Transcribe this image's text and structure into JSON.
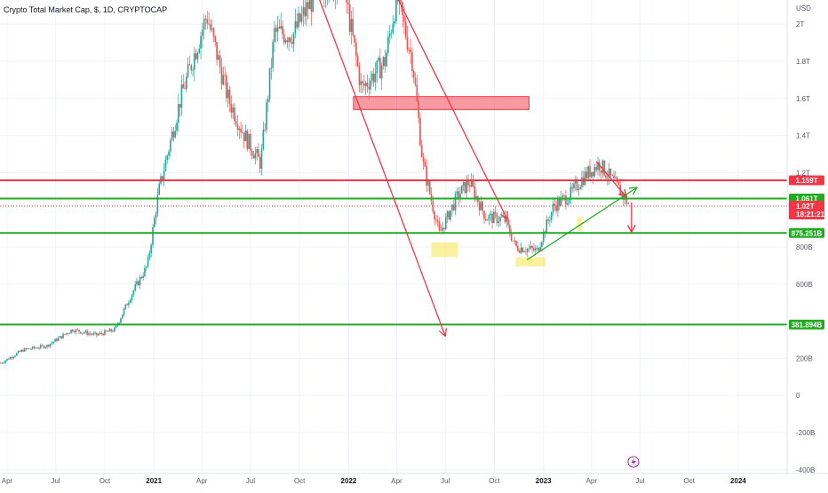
{
  "chart_data": {
    "type": "candlestick",
    "title": "Crypto Total Market Cap, $, 1D, CRYPTOCAP",
    "y_unit_label": "USD",
    "x_tick_labels": [
      {
        "date": "2020-04-01",
        "label": "Apr",
        "bold": false
      },
      {
        "date": "2020-07-01",
        "label": "Jul",
        "bold": false
      },
      {
        "date": "2020-10-01",
        "label": "Oct",
        "bold": false
      },
      {
        "date": "2021-01-01",
        "label": "2021",
        "bold": true
      },
      {
        "date": "2021-04-01",
        "label": "Apr",
        "bold": false
      },
      {
        "date": "2021-07-01",
        "label": "Jul",
        "bold": false
      },
      {
        "date": "2021-10-01",
        "label": "Oct",
        "bold": false
      },
      {
        "date": "2022-01-01",
        "label": "2022",
        "bold": true
      },
      {
        "date": "2022-04-01",
        "label": "Apr",
        "bold": false
      },
      {
        "date": "2022-07-01",
        "label": "Jul",
        "bold": false
      },
      {
        "date": "2022-10-01",
        "label": "Oct",
        "bold": false
      },
      {
        "date": "2023-01-01",
        "label": "2023",
        "bold": true
      },
      {
        "date": "2023-04-01",
        "label": "Apr",
        "bold": false
      },
      {
        "date": "2023-07-01",
        "label": "Jul",
        "bold": false
      },
      {
        "date": "2023-10-01",
        "label": "Oct",
        "bold": false
      },
      {
        "date": "2024-01-01",
        "label": "2024",
        "bold": true
      }
    ],
    "y_tick_labels": [
      "2T",
      "1.8T",
      "1.6T",
      "1.4T",
      "1.2T",
      "800B",
      "600B",
      "200B",
      "0",
      "-200B",
      "-400B"
    ],
    "y_tick_values": [
      2000,
      1800,
      1600,
      1400,
      1200,
      800,
      600,
      200,
      0,
      -200,
      -400
    ],
    "ylim": [
      -420,
      2130
    ],
    "series_closes": [
      {
        "date": "2020-03-20",
        "value": 175
      },
      {
        "date": "2020-05-01",
        "value": 245
      },
      {
        "date": "2020-06-15",
        "value": 268
      },
      {
        "date": "2020-08-01",
        "value": 355
      },
      {
        "date": "2020-09-15",
        "value": 325
      },
      {
        "date": "2020-10-20",
        "value": 355
      },
      {
        "date": "2020-11-20",
        "value": 545
      },
      {
        "date": "2020-12-20",
        "value": 700
      },
      {
        "date": "2021-01-10",
        "value": 1100
      },
      {
        "date": "2021-02-20",
        "value": 1600
      },
      {
        "date": "2021-04-10",
        "value": 2050
      },
      {
        "date": "2021-05-20",
        "value": 1600
      },
      {
        "date": "2021-06-20",
        "value": 1400
      },
      {
        "date": "2021-07-20",
        "value": 1250
      },
      {
        "date": "2021-08-15",
        "value": 1950
      },
      {
        "date": "2021-09-20",
        "value": 1950
      },
      {
        "date": "2021-11-05",
        "value": 2200
      },
      {
        "date": "2021-12-20",
        "value": 2250
      },
      {
        "date": "2022-01-25",
        "value": 1650
      },
      {
        "date": "2022-03-10",
        "value": 1800
      },
      {
        "date": "2022-04-01",
        "value": 2150
      },
      {
        "date": "2022-05-01",
        "value": 1800
      },
      {
        "date": "2022-05-20",
        "value": 1250
      },
      {
        "date": "2022-06-20",
        "value": 870
      },
      {
        "date": "2022-07-25",
        "value": 1080
      },
      {
        "date": "2022-08-15",
        "value": 1150
      },
      {
        "date": "2022-09-15",
        "value": 960
      },
      {
        "date": "2022-10-20",
        "value": 950
      },
      {
        "date": "2022-11-10",
        "value": 800
      },
      {
        "date": "2022-12-20",
        "value": 780
      },
      {
        "date": "2023-01-20",
        "value": 1020
      },
      {
        "date": "2023-02-20",
        "value": 1080
      },
      {
        "date": "2023-03-15",
        "value": 1170
      },
      {
        "date": "2023-04-15",
        "value": 1250
      },
      {
        "date": "2023-05-15",
        "value": 1140
      },
      {
        "date": "2023-06-10",
        "value": 1030
      }
    ],
    "horizontal_lines": [
      {
        "value": 1159,
        "color": "#f23645",
        "label": "1.159T"
      },
      {
        "value": 1061,
        "color": "#22ab22",
        "label": "1.061T"
      },
      {
        "value": 875.251,
        "color": "#22ab22",
        "label": "875.251B"
      },
      {
        "value": 381.894,
        "color": "#22ab22",
        "label": "381.894B"
      }
    ],
    "current_price": {
      "value": 1020,
      "label": "1.02T",
      "countdown": "18:21:21",
      "color": "#f23645"
    },
    "drawings": {
      "trend_arrows": [
        {
          "color": "#f23645",
          "from": {
            "date": "2021-11-05",
            "value": 2150
          },
          "to": {
            "date": "2022-07-01",
            "value": 320
          }
        },
        {
          "color": "#f23645",
          "from": {
            "date": "2022-04-01",
            "value": 2150
          },
          "to": {
            "date": "2022-10-25",
            "value": 950
          }
        },
        {
          "color": "#f23645",
          "from": {
            "date": "2023-04-10",
            "value": 1260
          },
          "to": {
            "date": "2023-06-05",
            "value": 1070
          }
        },
        {
          "color": "#22ab22",
          "from": {
            "date": "2022-12-01",
            "value": 730
          },
          "to": {
            "date": "2023-06-25",
            "value": 1120
          }
        },
        {
          "color": "#f23645",
          "from": {
            "date": "2023-06-15",
            "value": 1040
          },
          "to": {
            "date": "2023-06-15",
            "value": 880
          }
        }
      ],
      "zones": [
        {
          "color": "#f23645",
          "from": {
            "date": "2022-01-10",
            "value": 1610
          },
          "to": {
            "date": "2022-12-05",
            "value": 1540
          }
        }
      ],
      "highlights": [
        {
          "color": "#f7e96b",
          "from": {
            "date": "2022-06-05",
            "value": 825
          },
          "to": {
            "date": "2022-07-25",
            "value": 745
          }
        },
        {
          "color": "#f7e96b",
          "from": {
            "date": "2022-11-10",
            "value": 745
          },
          "to": {
            "date": "2023-01-05",
            "value": 695
          }
        },
        {
          "color": "#f7e96b",
          "from": {
            "date": "2023-03-05",
            "value": 960
          },
          "to": {
            "date": "2023-03-15",
            "value": 890
          }
        }
      ]
    },
    "colors": {
      "up": "#26a69a",
      "down": "#ef5350",
      "grid": "#f0f3fa",
      "axis_text": "#555a66"
    },
    "grid": true,
    "bottom_icon": "lightning-icon"
  }
}
